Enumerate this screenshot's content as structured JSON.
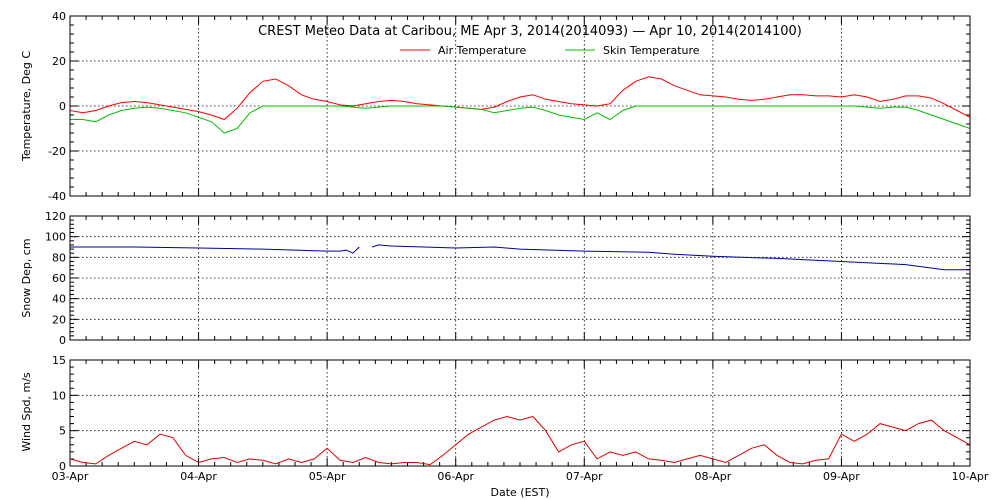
{
  "title": "CREST Meteo Data at Caribou, ME   Apr  3, 2014(2014093) — Apr 10, 2014(2014100)",
  "xlabel": "Date (EST)",
  "x_ticks": [
    "03-Apr",
    "04-Apr",
    "05-Apr",
    "06-Apr",
    "07-Apr",
    "08-Apr",
    "09-Apr",
    "10-Apr"
  ],
  "colors": {
    "air": "#ff0000",
    "skin": "#00c000",
    "snow": "#0000a0",
    "wind": "#dd0000"
  },
  "chart_data": [
    {
      "type": "line",
      "ylabel": "Temperature, Deg C",
      "ylim": [
        -40,
        40
      ],
      "yticks": [
        -40,
        -20,
        0,
        20,
        40
      ],
      "xlim": [
        0,
        7
      ],
      "grid": true,
      "legend_placement": "top-center",
      "series": [
        {
          "name": "Air Temperature",
          "color": "#ff0000",
          "x": [
            0,
            0.1,
            0.2,
            0.3,
            0.4,
            0.5,
            0.6,
            0.7,
            0.8,
            0.9,
            1.0,
            1.1,
            1.2,
            1.3,
            1.4,
            1.5,
            1.6,
            1.7,
            1.8,
            1.9,
            2.0,
            2.1,
            2.2,
            2.3,
            2.4,
            2.5,
            2.6,
            2.7,
            2.8,
            2.9,
            3.0,
            3.1,
            3.2,
            3.3,
            3.4,
            3.5,
            3.6,
            3.7,
            3.8,
            3.9,
            4.0,
            4.1,
            4.2,
            4.3,
            4.4,
            4.5,
            4.6,
            4.7,
            4.8,
            4.9,
            5.0,
            5.1,
            5.2,
            5.3,
            5.4,
            5.5,
            5.6,
            5.7,
            5.8,
            5.9,
            6.0,
            6.1,
            6.2,
            6.3,
            6.4,
            6.5,
            6.6,
            6.7,
            6.8,
            6.9,
            7.0
          ],
          "values": [
            -2,
            -3,
            -2,
            0,
            1.5,
            2,
            1.5,
            0.5,
            -0.5,
            -1.5,
            -2.5,
            -4,
            -6,
            -1,
            6,
            11,
            12,
            9,
            5,
            3,
            2,
            0.5,
            0,
            1,
            2,
            2.5,
            2,
            1,
            0.5,
            0,
            -0.5,
            -1,
            -1.5,
            -0.5,
            2,
            4,
            5,
            3,
            2,
            1,
            0.5,
            0,
            1,
            7,
            11,
            13,
            12,
            9,
            7,
            5,
            4.5,
            4,
            3,
            2.5,
            3,
            4,
            5,
            5,
            4.5,
            4.5,
            4,
            5,
            4,
            2,
            3,
            4.5,
            4.5,
            3.5,
            1,
            -2,
            -5
          ]
        },
        {
          "name": "Skin Temperature",
          "color": "#00c000",
          "x": [
            0,
            0.1,
            0.2,
            0.3,
            0.4,
            0.5,
            0.6,
            0.7,
            0.8,
            0.9,
            1.0,
            1.1,
            1.2,
            1.3,
            1.4,
            1.5,
            1.6,
            1.7,
            1.8,
            1.9,
            2.0,
            2.1,
            2.2,
            2.3,
            2.4,
            2.5,
            2.6,
            2.7,
            2.8,
            2.9,
            3.0,
            3.1,
            3.2,
            3.3,
            3.4,
            3.5,
            3.6,
            3.7,
            3.8,
            3.9,
            4.0,
            4.1,
            4.2,
            4.3,
            4.4,
            4.5,
            4.6,
            4.7,
            4.8,
            4.9,
            5.0,
            5.1,
            5.2,
            5.3,
            5.4,
            5.5,
            5.6,
            5.7,
            5.8,
            5.9,
            6.0,
            6.1,
            6.2,
            6.3,
            6.4,
            6.5,
            6.6,
            6.7,
            6.8,
            6.9,
            7.0
          ],
          "values": [
            -6,
            -6,
            -7,
            -4,
            -2,
            -1,
            -0.5,
            -1,
            -2,
            -3,
            -5,
            -7,
            -12,
            -10,
            -3,
            0,
            0,
            0,
            0,
            0,
            0,
            0,
            -0.5,
            -1,
            -0.5,
            0,
            0,
            0,
            0,
            0,
            -0.5,
            -1,
            -1.5,
            -3,
            -2,
            -1,
            -0.5,
            -2,
            -4,
            -5,
            -6,
            -3,
            -6,
            -2,
            0,
            0,
            0,
            0,
            0,
            0,
            0,
            0,
            0,
            0,
            0,
            0,
            0,
            0,
            0,
            0,
            0,
            0,
            -0.5,
            -1,
            -0.5,
            -0.5,
            -2,
            -4,
            -6,
            -8,
            -10
          ]
        }
      ]
    },
    {
      "type": "line",
      "ylabel": "Snow Dep, cm",
      "ylim": [
        0,
        120
      ],
      "yticks": [
        0,
        20,
        40,
        60,
        80,
        100,
        120
      ],
      "xlim": [
        0,
        7
      ],
      "grid": true,
      "series": [
        {
          "color": "#0000a0",
          "x": [
            0,
            0.5,
            1.0,
            1.5,
            2.0,
            2.1,
            2.15,
            2.2,
            2.25,
            2.3,
            2.35,
            2.4,
            2.5,
            3.0,
            3.3,
            3.5,
            4.0,
            4.5,
            4.7,
            5.0,
            5.5,
            6.0,
            6.5,
            6.8,
            7.0
          ],
          "values": [
            90,
            90,
            89,
            88,
            86,
            86,
            87,
            84,
            90,
            null,
            90,
            92,
            91,
            89,
            90,
            88,
            86,
            85,
            83,
            81,
            79,
            76,
            73,
            68,
            68
          ]
        }
      ]
    },
    {
      "type": "line",
      "ylabel": "Wind Spd, m/s",
      "ylim": [
        0,
        15
      ],
      "yticks": [
        0,
        5,
        10,
        15
      ],
      "xlim": [
        0,
        7
      ],
      "grid": true,
      "series": [
        {
          "color": "#dd0000",
          "x": [
            0,
            0.1,
            0.2,
            0.3,
            0.4,
            0.5,
            0.6,
            0.7,
            0.8,
            0.9,
            1.0,
            1.1,
            1.2,
            1.3,
            1.4,
            1.5,
            1.6,
            1.7,
            1.8,
            1.9,
            2.0,
            2.1,
            2.2,
            2.3,
            2.4,
            2.5,
            2.6,
            2.7,
            2.8,
            2.9,
            3.0,
            3.1,
            3.2,
            3.3,
            3.4,
            3.5,
            3.6,
            3.7,
            3.8,
            3.9,
            4.0,
            4.1,
            4.2,
            4.3,
            4.4,
            4.5,
            4.6,
            4.7,
            4.8,
            4.9,
            5.0,
            5.1,
            5.2,
            5.3,
            5.4,
            5.5,
            5.6,
            5.7,
            5.8,
            5.9,
            6.0,
            6.1,
            6.2,
            6.3,
            6.4,
            6.5,
            6.6,
            6.7,
            6.8,
            6.9,
            7.0
          ],
          "values": [
            1,
            0.5,
            0.3,
            1.5,
            2.5,
            3.5,
            3,
            4.5,
            4,
            1.5,
            0.5,
            1,
            1.2,
            0.5,
            1,
            0.8,
            0.3,
            1,
            0.5,
            1,
            2.5,
            0.8,
            0.5,
            1.2,
            0.5,
            0.3,
            0.5,
            0.5,
            0.2,
            1.5,
            3,
            4.5,
            5.5,
            6.5,
            7,
            6.5,
            7,
            5,
            2,
            3,
            3.5,
            1,
            2,
            1.5,
            2,
            1,
            0.8,
            0.5,
            1,
            1.5,
            1,
            0.5,
            1.5,
            2.5,
            3,
            1.5,
            0.5,
            0.3,
            0.8,
            1,
            4.5,
            3.5,
            4.5,
            6,
            5.5,
            5,
            6,
            6.5,
            5,
            4,
            3
          ]
        }
      ]
    }
  ]
}
